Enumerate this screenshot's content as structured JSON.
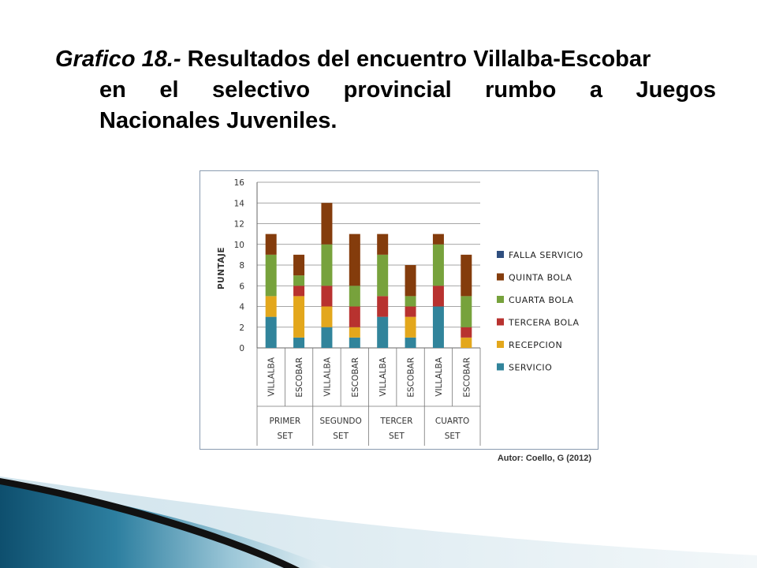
{
  "title": {
    "prefix": "Grafico 18.-",
    "line1_rest": " Resultados del encuentro Villalba-Escobar",
    "line2": "en el selectivo provincial rumbo a Juegos",
    "line3": "Nacionales Juveniles."
  },
  "credit": "Autor: Coello, G (2012)",
  "chart_data": {
    "type": "bar",
    "stacked": true,
    "ylabel": "PUNTAJE",
    "xlabel": "",
    "ylim": [
      0,
      16
    ],
    "yticks": [
      0,
      2,
      4,
      6,
      8,
      10,
      12,
      14,
      16
    ],
    "grid": true,
    "legend_position": "right",
    "categories": [
      "VILLALBA",
      "ESCOBAR",
      "VILLALBA",
      "ESCOBAR",
      "VILLALBA",
      "ESCOBAR",
      "VILLALBA",
      "ESCOBAR"
    ],
    "groups": [
      {
        "label_line1": "PRIMER",
        "label_line2": "SET"
      },
      {
        "label_line1": "SEGUNDO",
        "label_line2": "SET"
      },
      {
        "label_line1": "TERCER",
        "label_line2": "SET"
      },
      {
        "label_line1": "CUARTO",
        "label_line2": "SET"
      }
    ],
    "series": [
      {
        "name": "SERVICIO",
        "color": "#31849b",
        "values": [
          3,
          1,
          2,
          1,
          3,
          1,
          4,
          0
        ]
      },
      {
        "name": "RECEPCION",
        "color": "#e3a71c",
        "values": [
          2,
          4,
          2,
          1,
          0,
          2,
          0,
          1
        ]
      },
      {
        "name": "TERCERA BOLA",
        "color": "#b8322f",
        "values": [
          0,
          1,
          2,
          2,
          2,
          1,
          2,
          1
        ]
      },
      {
        "name": "CUARTA BOLA",
        "color": "#77a23c",
        "values": [
          4,
          1,
          4,
          2,
          4,
          1,
          4,
          3
        ]
      },
      {
        "name": "QUINTA BOLA",
        "color": "#843c0c",
        "values": [
          2,
          2,
          4,
          5,
          2,
          3,
          1,
          4
        ]
      },
      {
        "name": "FALLA SERVICIO",
        "color": "#2f4f7f",
        "values": [
          0,
          0,
          0,
          0,
          0,
          0,
          0,
          0
        ]
      }
    ]
  }
}
